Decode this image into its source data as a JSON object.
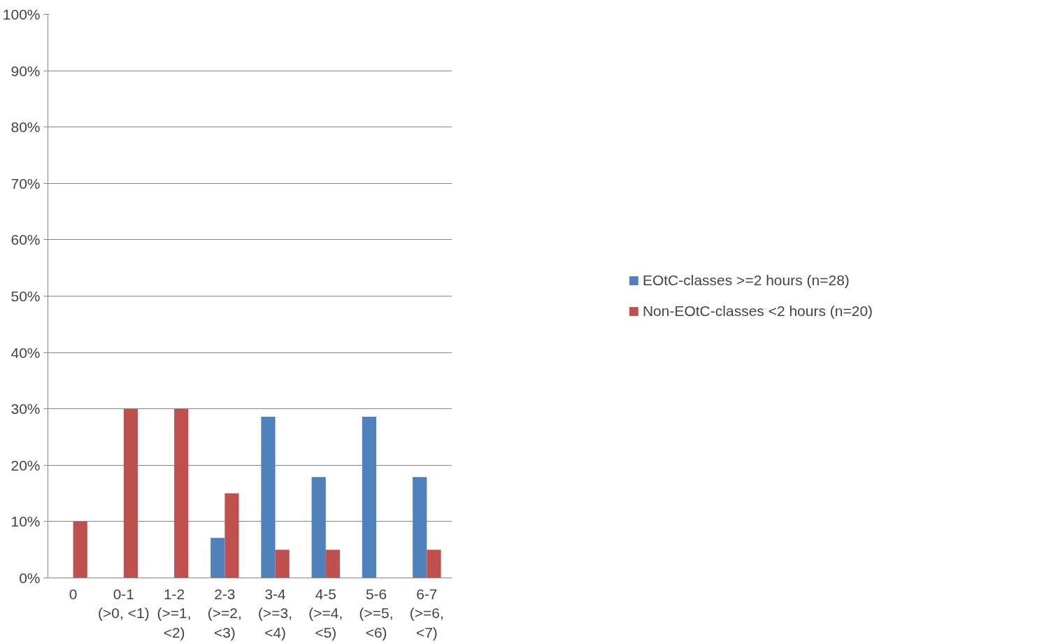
{
  "chart_data": {
    "type": "bar",
    "categories": [
      "0",
      "0-1 (>0, <1)",
      "1-2 (>=1, <2)",
      "2-3 (>=2, <3)",
      "3-4 (>=3, <4)",
      "4-5 (>=4, <5)",
      "5-6 (>=5, <6)",
      "6-7 (>=6, <7)"
    ],
    "series": [
      {
        "name": "EOtC-classes >=2 hours (n=28)",
        "color": "#4f81bd",
        "values": [
          0,
          0,
          0,
          7.1,
          28.6,
          17.9,
          28.6,
          17.9
        ]
      },
      {
        "name": "Non-EOtC-classes <2 hours (n=20)",
        "color": "#c0504d",
        "values": [
          10,
          30,
          30,
          15,
          5,
          5,
          0,
          5
        ]
      }
    ],
    "ylim": [
      0,
      100
    ],
    "yticks": [
      {
        "value": 0,
        "label": "0%"
      },
      {
        "value": 10,
        "label": "10%"
      },
      {
        "value": 20,
        "label": "20%"
      },
      {
        "value": 30,
        "label": "30%"
      },
      {
        "value": 40,
        "label": "40%"
      },
      {
        "value": 50,
        "label": "50%"
      },
      {
        "value": 60,
        "label": "60%"
      },
      {
        "value": 70,
        "label": "70%"
      },
      {
        "value": 80,
        "label": "80%"
      },
      {
        "value": 90,
        "label": "90%"
      },
      {
        "value": 100,
        "label": "100%"
      }
    ],
    "grid": "y",
    "legend": "right"
  }
}
